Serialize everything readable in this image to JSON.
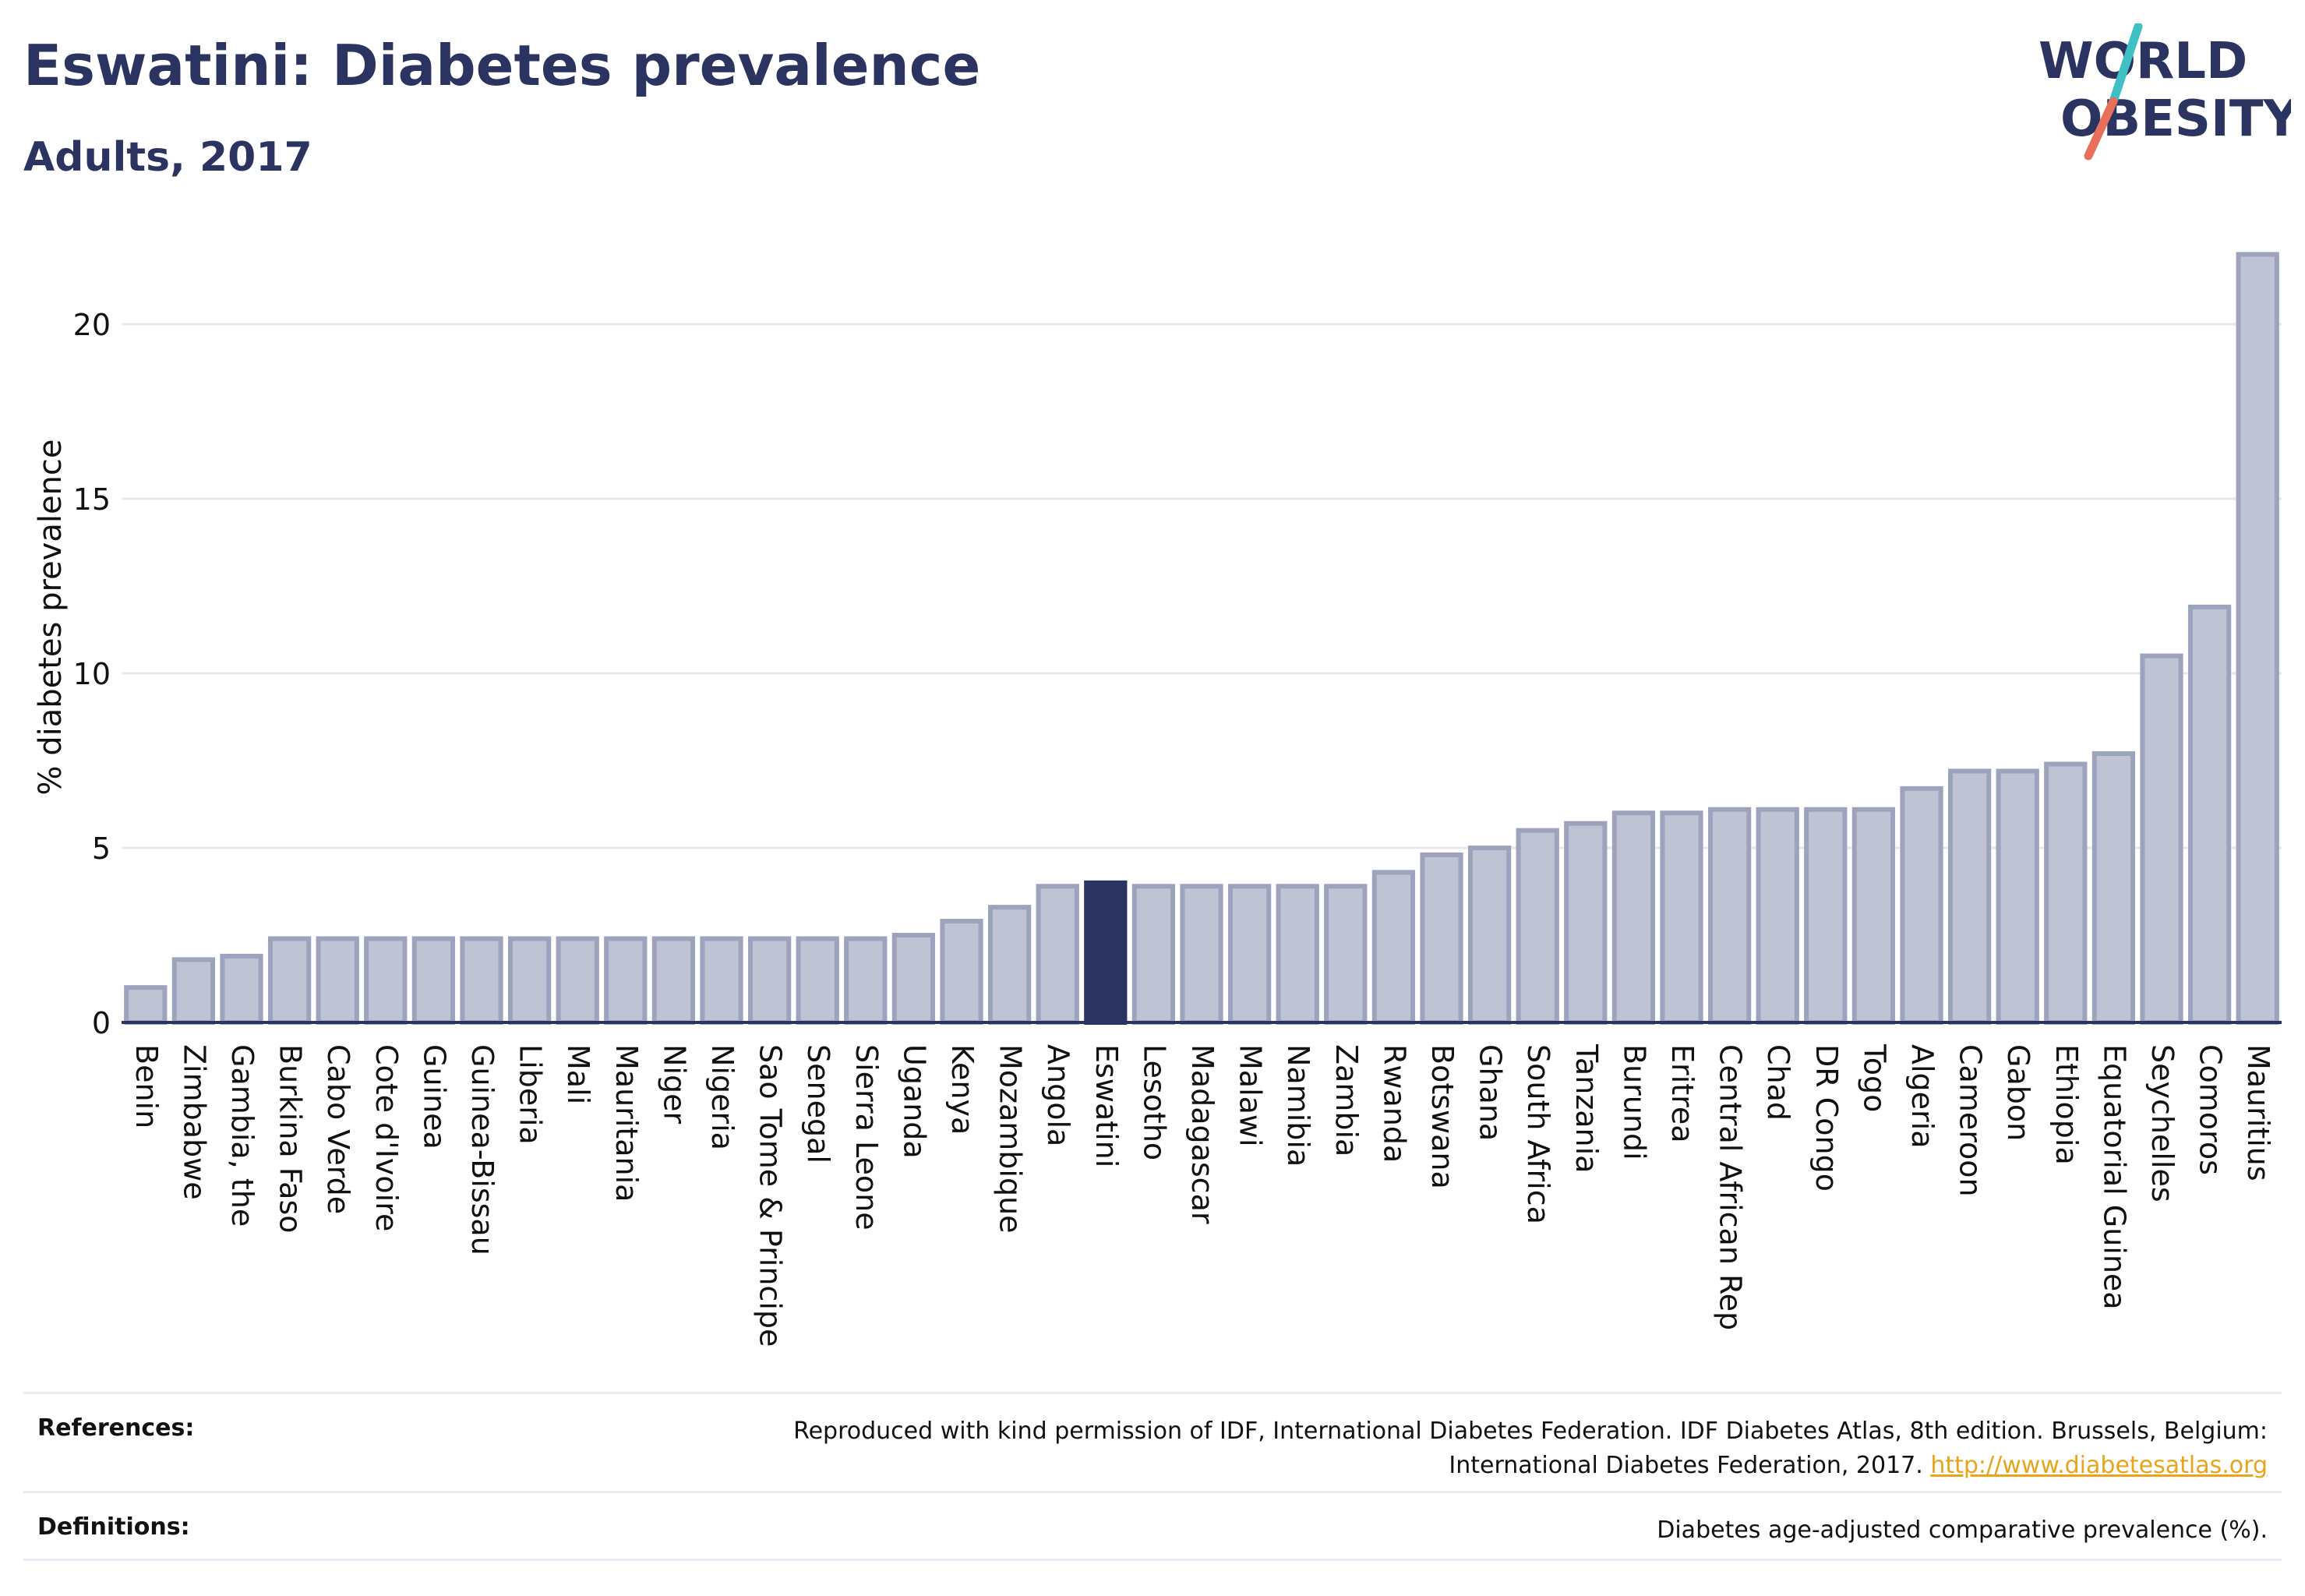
{
  "header": {
    "title": "Eswatini: Diabetes prevalence",
    "subtitle": "Adults, 2017"
  },
  "logo": {
    "line1": "WORLD",
    "line2": "OBESITY",
    "colors": {
      "text": "#2b3461",
      "slash_top": "#3fc0c5",
      "slash_bottom": "#e8705a"
    }
  },
  "colors": {
    "bar_fill": "#c0c3d3",
    "bar_stroke": "#9da2bd",
    "highlight_fill": "#2b3461",
    "axis": "#2b3461",
    "grid": "#e6e7ef"
  },
  "chart_data": {
    "type": "bar",
    "ylabel": "% diabetes prevalence",
    "xlabel": "",
    "ylim": [
      0,
      23
    ],
    "yticks": [
      0,
      5,
      10,
      15,
      20
    ],
    "grid": true,
    "highlight": "Eswatini",
    "categories": [
      "Benin",
      "Zimbabwe",
      "Gambia, the",
      "Burkina Faso",
      "Cabo Verde",
      "Cote d'Ivoire",
      "Guinea",
      "Guinea-Bissau",
      "Liberia",
      "Mali",
      "Mauritania",
      "Niger",
      "Nigeria",
      "Sao Tome & Principe",
      "Senegal",
      "Sierra Leone",
      "Uganda",
      "Kenya",
      "Mozambique",
      "Angola",
      "Eswatini",
      "Lesotho",
      "Madagascar",
      "Malawi",
      "Namibia",
      "Zambia",
      "Rwanda",
      "Botswana",
      "Ghana",
      "South Africa",
      "Tanzania",
      "Burundi",
      "Eritrea",
      "Central African Rep",
      "Chad",
      "DR Congo",
      "Togo",
      "Algeria",
      "Cameroon",
      "Gabon",
      "Ethiopia",
      "Equatorial Guinea",
      "Seychelles",
      "Comoros",
      "Mauritius"
    ],
    "values": [
      1.0,
      1.8,
      1.9,
      2.4,
      2.4,
      2.4,
      2.4,
      2.4,
      2.4,
      2.4,
      2.4,
      2.4,
      2.4,
      2.4,
      2.4,
      2.4,
      2.5,
      2.9,
      3.3,
      3.9,
      4.0,
      3.9,
      3.9,
      3.9,
      3.9,
      3.9,
      4.3,
      4.8,
      5.0,
      5.5,
      5.7,
      6.0,
      6.0,
      6.1,
      6.1,
      6.1,
      6.1,
      6.7,
      7.2,
      7.2,
      7.4,
      7.7,
      10.5,
      11.9,
      22.0
    ]
  },
  "footer": {
    "references_label": "References:",
    "references_text": "Reproduced with kind permission of IDF, International Diabetes Federation. IDF Diabetes Atlas, 8th edition. Brussels, Belgium: International Diabetes Federation, 2017.",
    "references_link": "http://www.diabetesatlas.org",
    "definitions_label": "Definitions:",
    "definitions_text": "Diabetes age-adjusted comparative prevalence (%)."
  }
}
